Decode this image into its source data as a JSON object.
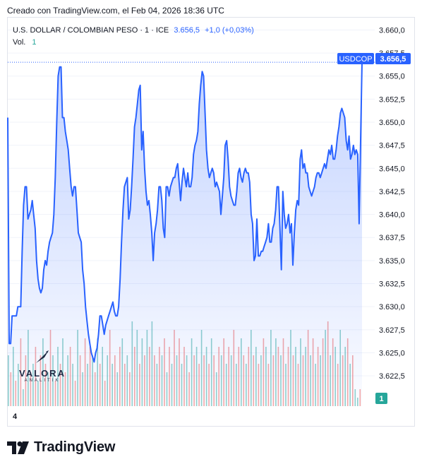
{
  "header": {
    "created_text": "Creado con TradingView.com, el Feb 04, 2026 18:36 UTC"
  },
  "legend": {
    "instrument": "U.S. DOLLAR / COLOMBIAN PESO · 1 · ICE",
    "last": "3.656,5",
    "change": "+1,0 (+0,03%)",
    "volume_label": "Vol.",
    "volume_value": "1"
  },
  "badges": {
    "symbol": "USDCOP",
    "price": "3.656,5",
    "volume": "1"
  },
  "time_axis": {
    "label": "4"
  },
  "watermark": {
    "name": "VALORA",
    "sub": "ANALITIK"
  },
  "footer": {
    "brand": "TradingView"
  },
  "colors": {
    "line": "#2962ff",
    "area_top": "#2962ff",
    "vol_up": "#26a69a",
    "vol_down": "#ef5350",
    "badge": "#2962ff",
    "vol_badge": "#26a69a"
  },
  "chart_data": {
    "type": "area",
    "ylim": [
      3620.9,
      3660.8
    ],
    "y_ticks": [
      "3.660,0",
      "3.657,5",
      "3.655,0",
      "3.652,5",
      "3.650,0",
      "3.647,5",
      "3.645,0",
      "3.642,5",
      "3.640,0",
      "3.637,5",
      "3.635,0",
      "3.632,5",
      "3.630,0",
      "3.627,5",
      "3.625,0",
      "3.622,5"
    ],
    "y_tick_values": [
      3660,
      3657.5,
      3655,
      3652.5,
      3650,
      3647.5,
      3645,
      3642.5,
      3640,
      3637.5,
      3635,
      3632.5,
      3630,
      3627.5,
      3625,
      3622.5
    ],
    "last_value": 3656.5,
    "series": [
      {
        "values": [
          3650.5,
          3626.0,
          3626.0,
          3629.0,
          3629.0,
          3629.0,
          3629.0,
          3630.0,
          3630.0,
          3630.0,
          3636.0,
          3641.0,
          3643.0,
          3643.0,
          3639.5,
          3640.0,
          3640.5,
          3641.5,
          3640.0,
          3638.5,
          3635.0,
          3633.0,
          3632.0,
          3631.5,
          3632.0,
          3634.0,
          3635.0,
          3634.5,
          3636.0,
          3637.0,
          3637.5,
          3638.0,
          3640.0,
          3644.0,
          3650.0,
          3655.0,
          3656.0,
          3656.0,
          3650.5,
          3650.5,
          3649.0,
          3648.0,
          3647.0,
          3645.0,
          3643.0,
          3642.0,
          3643.0,
          3643.0,
          3640.5,
          3638.0,
          3637.5,
          3637.0,
          3634.0,
          3632.5,
          3630.0,
          3628.5,
          3627.0,
          3626.0,
          3625.0,
          3624.5,
          3624.0,
          3625.0,
          3625.5,
          3627.0,
          3629.0,
          3629.0,
          3628.0,
          3627.0,
          3628.0,
          3628.5,
          3629.0,
          3629.5,
          3630.0,
          3630.5,
          3629.5,
          3629.0,
          3629.0,
          3630.0,
          3633.0,
          3637.0,
          3640.5,
          3643.0,
          3643.5,
          3644.0,
          3639.5,
          3640.5,
          3643.0,
          3646.0,
          3649.5,
          3650.5,
          3652.0,
          3653.5,
          3654.0,
          3647.0,
          3649.0,
          3645.0,
          3642.5,
          3641.0,
          3641.5,
          3640.0,
          3638.0,
          3635.0,
          3638.0,
          3639.0,
          3640.5,
          3643.0,
          3643.0,
          3641.5,
          3638.5,
          3637.5,
          3643.0,
          3643.0,
          3642.0,
          3643.0,
          3643.5,
          3644.0,
          3644.0,
          3645.0,
          3645.5,
          3643.5,
          3641.5,
          3643.5,
          3645.0,
          3644.0,
          3643.0,
          3644.5,
          3643.0,
          3643.0,
          3644.0,
          3646.5,
          3647.5,
          3648.0,
          3649.0,
          3652.0,
          3654.0,
          3655.5,
          3655.0,
          3651.0,
          3647.0,
          3645.0,
          3644.0,
          3644.5,
          3645.0,
          3644.5,
          3643.0,
          3643.5,
          3643.0,
          3642.5,
          3640.0,
          3642.0,
          3644.0,
          3647.5,
          3648.0,
          3646.0,
          3643.0,
          3642.0,
          3641.5,
          3641.0,
          3641.0,
          3642.5,
          3644.5,
          3645.0,
          3644.0,
          3643.5,
          3644.5,
          3645.0,
          3644.5,
          3644.5,
          3643.5,
          3640.0,
          3639.0,
          3635.0,
          3635.5,
          3639.5,
          3635.5,
          3635.5,
          3636.0,
          3636.0,
          3636.5,
          3637.0,
          3637.5,
          3639.0,
          3637.0,
          3637.0,
          3638.5,
          3639.0,
          3640.5,
          3643.0,
          3643.0,
          3638.5,
          3634.0,
          3642.5,
          3640.0,
          3638.5,
          3639.0,
          3640.0,
          3638.0,
          3639.0,
          3634.5,
          3638.0,
          3640.5,
          3641.5,
          3641.0,
          3646.0,
          3647.0,
          3645.0,
          3645.5,
          3644.5,
          3644.5,
          3643.0,
          3642.5,
          3642.0,
          3642.5,
          3643.0,
          3644.0,
          3644.5,
          3644.5,
          3644.0,
          3644.5,
          3645.0,
          3645.5,
          3645.0,
          3646.0,
          3647.0,
          3646.5,
          3647.5,
          3646.0,
          3646.0,
          3647.0,
          3648.5,
          3649.5,
          3651.0,
          3651.5,
          3651.0,
          3650.5,
          3648.0,
          3647.0,
          3648.5,
          3646.0,
          3646.5,
          3647.5,
          3646.5,
          3647.0,
          3646.5,
          3639.0,
          3648.0,
          3656.5
        ]
      }
    ],
    "volume": [
      {
        "v": 0.6,
        "up": true
      },
      {
        "v": 0.4,
        "up": false
      },
      {
        "v": 0.7,
        "up": true
      },
      {
        "v": 0.3,
        "up": false
      },
      {
        "v": 0.5,
        "up": true
      },
      {
        "v": 0.8,
        "up": false
      },
      {
        "v": 0.2,
        "up": true
      },
      {
        "v": 0.6,
        "up": false
      },
      {
        "v": 0.9,
        "up": true
      },
      {
        "v": 0.4,
        "up": false
      },
      {
        "v": 0.5,
        "up": true
      },
      {
        "v": 0.7,
        "up": false
      },
      {
        "v": 0.3,
        "up": true
      },
      {
        "v": 0.6,
        "up": false
      },
      {
        "v": 0.8,
        "up": true
      },
      {
        "v": 0.5,
        "up": false
      },
      {
        "v": 0.4,
        "up": true
      },
      {
        "v": 0.9,
        "up": false
      },
      {
        "v": 0.6,
        "up": true
      },
      {
        "v": 0.3,
        "up": false
      },
      {
        "v": 0.7,
        "up": true
      },
      {
        "v": 0.5,
        "up": false
      },
      {
        "v": 0.8,
        "up": true
      },
      {
        "v": 0.4,
        "up": false
      },
      {
        "v": 0.6,
        "up": true
      },
      {
        "v": 0.7,
        "up": false
      },
      {
        "v": 0.5,
        "up": true
      },
      {
        "v": 0.3,
        "up": false
      },
      {
        "v": 0.9,
        "up": true
      },
      {
        "v": 0.6,
        "up": false
      },
      {
        "v": 0.4,
        "up": true
      },
      {
        "v": 0.8,
        "up": false
      },
      {
        "v": 0.5,
        "up": true
      },
      {
        "v": 0.7,
        "up": false
      },
      {
        "v": 0.6,
        "up": true
      },
      {
        "v": 0.4,
        "up": false
      },
      {
        "v": 0.8,
        "up": true
      },
      {
        "v": 0.5,
        "up": false
      },
      {
        "v": 0.7,
        "up": true
      },
      {
        "v": 0.3,
        "up": false
      },
      {
        "v": 0.6,
        "up": true
      },
      {
        "v": 0.9,
        "up": false
      },
      {
        "v": 0.5,
        "up": true
      },
      {
        "v": 0.6,
        "up": false
      },
      {
        "v": 0.4,
        "up": true
      },
      {
        "v": 0.7,
        "up": false
      },
      {
        "v": 0.8,
        "up": true
      },
      {
        "v": 0.5,
        "up": false
      },
      {
        "v": 0.6,
        "up": true
      },
      {
        "v": 0.4,
        "up": false
      },
      {
        "v": 1.0,
        "up": true
      },
      {
        "v": 0.7,
        "up": false
      },
      {
        "v": 0.9,
        "up": true
      },
      {
        "v": 0.5,
        "up": false
      },
      {
        "v": 0.8,
        "up": true
      },
      {
        "v": 0.6,
        "up": false
      },
      {
        "v": 0.9,
        "up": true
      },
      {
        "v": 0.7,
        "up": false
      },
      {
        "v": 1.0,
        "up": true
      },
      {
        "v": 0.6,
        "up": false
      },
      {
        "v": 0.5,
        "up": true
      },
      {
        "v": 0.7,
        "up": false
      },
      {
        "v": 0.6,
        "up": true
      },
      {
        "v": 0.8,
        "up": false
      },
      {
        "v": 0.4,
        "up": true
      },
      {
        "v": 0.7,
        "up": false
      },
      {
        "v": 0.5,
        "up": true
      },
      {
        "v": 0.9,
        "up": false
      },
      {
        "v": 0.6,
        "up": true
      },
      {
        "v": 0.8,
        "up": false
      },
      {
        "v": 0.5,
        "up": true
      },
      {
        "v": 0.7,
        "up": false
      },
      {
        "v": 0.6,
        "up": true
      },
      {
        "v": 0.4,
        "up": false
      },
      {
        "v": 0.8,
        "up": true
      },
      {
        "v": 0.6,
        "up": false
      },
      {
        "v": 0.7,
        "up": true
      },
      {
        "v": 0.5,
        "up": false
      },
      {
        "v": 0.9,
        "up": true
      },
      {
        "v": 0.6,
        "up": false
      },
      {
        "v": 0.7,
        "up": true
      },
      {
        "v": 0.5,
        "up": false
      },
      {
        "v": 0.8,
        "up": true
      },
      {
        "v": 0.6,
        "up": false
      },
      {
        "v": 0.4,
        "up": true
      },
      {
        "v": 0.7,
        "up": false
      },
      {
        "v": 0.6,
        "up": true
      },
      {
        "v": 0.8,
        "up": false
      },
      {
        "v": 0.5,
        "up": true
      },
      {
        "v": 0.7,
        "up": false
      },
      {
        "v": 0.6,
        "up": true
      },
      {
        "v": 0.9,
        "up": false
      },
      {
        "v": 0.5,
        "up": true
      },
      {
        "v": 0.7,
        "up": false
      },
      {
        "v": 0.8,
        "up": true
      },
      {
        "v": 0.6,
        "up": false
      },
      {
        "v": 0.5,
        "up": true
      },
      {
        "v": 0.7,
        "up": false
      },
      {
        "v": 0.9,
        "up": true
      },
      {
        "v": 0.6,
        "up": false
      },
      {
        "v": 0.7,
        "up": true
      },
      {
        "v": 0.5,
        "up": false
      },
      {
        "v": 0.6,
        "up": true
      },
      {
        "v": 0.8,
        "up": false
      },
      {
        "v": 0.7,
        "up": true
      },
      {
        "v": 0.5,
        "up": false
      },
      {
        "v": 0.9,
        "up": true
      },
      {
        "v": 0.6,
        "up": false
      },
      {
        "v": 0.8,
        "up": true
      },
      {
        "v": 0.7,
        "up": false
      },
      {
        "v": 0.6,
        "up": true
      },
      {
        "v": 0.8,
        "up": false
      },
      {
        "v": 0.5,
        "up": true
      },
      {
        "v": 0.7,
        "up": false
      },
      {
        "v": 0.9,
        "up": true
      },
      {
        "v": 0.6,
        "up": false
      },
      {
        "v": 0.7,
        "up": true
      },
      {
        "v": 0.5,
        "up": false
      },
      {
        "v": 0.8,
        "up": true
      },
      {
        "v": 0.6,
        "up": false
      },
      {
        "v": 0.7,
        "up": true
      },
      {
        "v": 0.9,
        "up": false
      },
      {
        "v": 0.6,
        "up": true
      },
      {
        "v": 0.8,
        "up": false
      },
      {
        "v": 0.5,
        "up": true
      },
      {
        "v": 0.7,
        "up": false
      },
      {
        "v": 0.6,
        "up": true
      },
      {
        "v": 0.8,
        "up": false
      },
      {
        "v": 0.9,
        "up": true
      },
      {
        "v": 1.0,
        "up": false
      },
      {
        "v": 0.6,
        "up": true
      },
      {
        "v": 0.8,
        "up": false
      },
      {
        "v": 0.7,
        "up": true
      },
      {
        "v": 0.5,
        "up": false
      },
      {
        "v": 0.9,
        "up": true
      },
      {
        "v": 0.6,
        "up": false
      },
      {
        "v": 0.7,
        "up": true
      },
      {
        "v": 0.8,
        "up": false
      },
      {
        "v": 0.5,
        "up": true
      },
      {
        "v": 0.6,
        "up": false
      },
      {
        "v": 0.2,
        "up": true
      },
      {
        "v": 0.1,
        "up": true
      },
      {
        "v": 0.2,
        "up": false
      }
    ]
  }
}
